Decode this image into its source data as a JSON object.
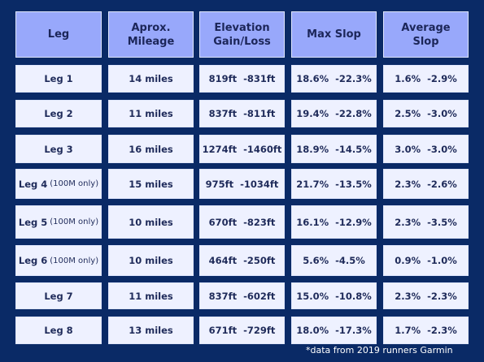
{
  "headers": [
    "Leg",
    "Aprox.\nMileage",
    "Elevation\nGain/Loss",
    "Max Slop",
    "Average\nSlop"
  ],
  "rows": [
    {
      "leg": "Leg 1",
      "note": "",
      "mileage": "14 miles",
      "elevation": "819ft  -831ft",
      "max_slop": "18.6%  -22.3%",
      "avg_slop": "1.6%  -2.9%"
    },
    {
      "leg": "Leg 2",
      "note": "",
      "mileage": "11 miles",
      "elevation": "837ft  -811ft",
      "max_slop": "19.4%  -22.8%",
      "avg_slop": "2.5%  -3.0%"
    },
    {
      "leg": "Leg 3",
      "note": "",
      "mileage": "16 miles",
      "elevation": "1274ft  -1460ft",
      "max_slop": "18.9%  -14.5%",
      "avg_slop": "3.0%  -3.0%"
    },
    {
      "leg": "Leg 4",
      "note": "(100M only)",
      "mileage": "15 miles",
      "elevation": "975ft  -1034ft",
      "max_slop": "21.7%  -13.5%",
      "avg_slop": "2.3%  -2.6%"
    },
    {
      "leg": "Leg 5",
      "note": "(100M only)",
      "mileage": "10 miles",
      "elevation": "670ft  -823ft",
      "max_slop": "16.1%  -12.9%",
      "avg_slop": "2.3%  -3.5%"
    },
    {
      "leg": "Leg 6",
      "note": "(100M only)",
      "mileage": "10 miles",
      "elevation": "464ft  -250ft",
      "max_slop": "5.6%  -4.5%",
      "avg_slop": "0.9%  -1.0%"
    },
    {
      "leg": "Leg 7",
      "note": "",
      "mileage": "11 miles",
      "elevation": "837ft  -602ft",
      "max_slop": "15.0%  -10.8%",
      "avg_slop": "2.3%  -2.3%"
    },
    {
      "leg": "Leg 8",
      "note": "",
      "mileage": "13 miles",
      "elevation": "671ft  -729ft",
      "max_slop": "18.0%  -17.3%",
      "avg_slop": "1.7%  -2.3%"
    }
  ],
  "footnote": "*data from 2019 runners Garmin",
  "colors": {
    "background": "#0a2a66",
    "header_fill": "#98a8fb",
    "cell_fill": "#eef1ff",
    "text": "#1f2b5a"
  }
}
